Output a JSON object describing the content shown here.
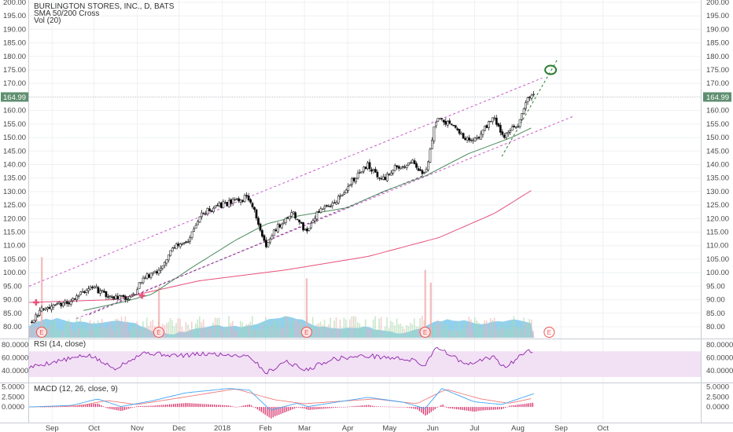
{
  "chart_data": {
    "type": "candlestick",
    "title": "BURLINGTON STORES, INC., D, BATS",
    "legend": [
      "SMA 50/200 Cross",
      "Vol (20)"
    ],
    "last_price_label": "164.99",
    "x_tick_labels": [
      "Sep",
      "Oct",
      "Nov",
      "Dec",
      "2018",
      "Feb",
      "Mar",
      "Apr",
      "May",
      "Jun",
      "Jul",
      "Aug",
      "Sep",
      "Oct"
    ],
    "earnings_marker_label": "E",
    "price_axis": {
      "ylim": [
        75,
        200
      ],
      "tick_labels": [
        "200.00",
        "195.00",
        "190.00",
        "185.00",
        "180.00",
        "175.00",
        "170.00",
        "165.00",
        "160.00",
        "155.00",
        "150.00",
        "145.00",
        "140.00",
        "135.00",
        "130.00",
        "125.00",
        "120.00",
        "115.00",
        "110.00",
        "105.00",
        "100.00",
        "95.00",
        "90.00",
        "85.00",
        "80.00"
      ]
    },
    "price_keypoints": [
      {
        "x": "2017-08-22",
        "y": 82
      },
      {
        "x": "2017-08-29",
        "y": 86
      },
      {
        "x": "2017-09-08",
        "y": 87.5
      },
      {
        "x": "2017-09-20",
        "y": 90
      },
      {
        "x": "2017-10-03",
        "y": 95
      },
      {
        "x": "2017-10-18",
        "y": 91
      },
      {
        "x": "2017-11-02",
        "y": 91
      },
      {
        "x": "2017-11-10",
        "y": 98
      },
      {
        "x": "2017-11-22",
        "y": 101
      },
      {
        "x": "2017-12-01",
        "y": 110
      },
      {
        "x": "2017-12-12",
        "y": 112
      },
      {
        "x": "2017-12-22",
        "y": 122
      },
      {
        "x": "2018-01-10",
        "y": 126
      },
      {
        "x": "2018-01-25",
        "y": 128
      },
      {
        "x": "2018-02-06",
        "y": 110
      },
      {
        "x": "2018-02-14",
        "y": 117
      },
      {
        "x": "2018-02-26",
        "y": 122
      },
      {
        "x": "2018-03-06",
        "y": 115
      },
      {
        "x": "2018-03-14",
        "y": 122
      },
      {
        "x": "2018-03-28",
        "y": 126
      },
      {
        "x": "2018-04-10",
        "y": 135
      },
      {
        "x": "2018-04-20",
        "y": 140
      },
      {
        "x": "2018-04-30",
        "y": 134
      },
      {
        "x": "2018-05-10",
        "y": 139
      },
      {
        "x": "2018-05-22",
        "y": 141
      },
      {
        "x": "2018-05-31",
        "y": 136
      },
      {
        "x": "2018-06-04",
        "y": 147
      },
      {
        "x": "2018-06-08",
        "y": 157
      },
      {
        "x": "2018-06-20",
        "y": 154
      },
      {
        "x": "2018-06-29",
        "y": 149
      },
      {
        "x": "2018-07-10",
        "y": 151
      },
      {
        "x": "2018-07-18",
        "y": 158
      },
      {
        "x": "2018-07-26",
        "y": 150
      },
      {
        "x": "2018-08-06",
        "y": 155
      },
      {
        "x": "2018-08-13",
        "y": 165
      },
      {
        "x": "2018-08-17",
        "y": 164.99
      }
    ],
    "sma50_keypoints": [
      {
        "x": "2017-09-28",
        "y": 86
      },
      {
        "x": "2017-10-25",
        "y": 89
      },
      {
        "x": "2017-11-16",
        "y": 92
      },
      {
        "x": "2017-12-15",
        "y": 102
      },
      {
        "x": "2018-01-15",
        "y": 112
      },
      {
        "x": "2018-02-06",
        "y": 118
      },
      {
        "x": "2018-03-01",
        "y": 121
      },
      {
        "x": "2018-04-05",
        "y": 124
      },
      {
        "x": "2018-05-01",
        "y": 130
      },
      {
        "x": "2018-06-01",
        "y": 136
      },
      {
        "x": "2018-07-01",
        "y": 144
      },
      {
        "x": "2018-08-01",
        "y": 150
      },
      {
        "x": "2018-08-17",
        "y": 154
      }
    ],
    "sma200_keypoints": [
      {
        "x": "2017-08-20",
        "y": 89
      },
      {
        "x": "2017-10-20",
        "y": 90
      },
      {
        "x": "2017-12-20",
        "y": 97
      },
      {
        "x": "2018-02-20",
        "y": 101
      },
      {
        "x": "2018-04-20",
        "y": 106
      },
      {
        "x": "2018-06-10",
        "y": 113
      },
      {
        "x": "2018-07-20",
        "y": 122
      },
      {
        "x": "2018-08-17",
        "y": 131
      }
    ],
    "sma_cross_markers": [
      {
        "x": "2017-08-25",
        "y": 89
      },
      {
        "x": "2017-11-09",
        "y": 91.5
      }
    ],
    "trend_channel": {
      "upper": [
        {
          "x": "2017-08-20",
          "y": 95
        },
        {
          "x": "2018-08-23",
          "y": 172
        }
      ],
      "lower": [
        {
          "x": "2017-09-23",
          "y": 83
        },
        {
          "x": "2018-09-15",
          "y": 158
        }
      ],
      "middle": [
        {
          "x": "2017-10-02",
          "y": 84.5
        },
        {
          "x": "2018-05-30",
          "y": 136
        }
      ]
    },
    "projection_line": [
      {
        "x": "2018-07-25",
        "y": 143
      },
      {
        "x": "2018-09-03",
        "y": 179
      }
    ],
    "target_circle": {
      "x": "2018-08-29",
      "y": 175
    },
    "earnings_markers": [
      {
        "x": "2017-08-29",
        "reported": true
      },
      {
        "x": "2017-11-21",
        "reported": true
      },
      {
        "x": "2018-03-07",
        "reported": true
      },
      {
        "x": "2018-05-31",
        "reported": true
      },
      {
        "x": "2018-08-28",
        "reported": false
      }
    ],
    "volume": {
      "title": "Vol (20)",
      "relative_spikes": [
        {
          "x": "2017-08-29",
          "v": 0.95
        },
        {
          "x": "2017-11-21",
          "v": 0.6
        },
        {
          "x": "2018-03-07",
          "v": 0.7
        },
        {
          "x": "2018-05-31",
          "v": 0.8
        },
        {
          "x": "2018-06-04",
          "v": 0.65
        }
      ]
    },
    "rsi": {
      "title": "RSI (14, close)",
      "tick_labels": [
        "80.0000",
        "60.0000",
        "40.0000"
      ],
      "ylim": [
        25,
        85
      ],
      "band": [
        30,
        70
      ],
      "keypoints": [
        {
          "x": "2017-08-20",
          "y": 45
        },
        {
          "x": "2017-09-10",
          "y": 55
        },
        {
          "x": "2017-10-02",
          "y": 64
        },
        {
          "x": "2017-10-20",
          "y": 43
        },
        {
          "x": "2017-11-10",
          "y": 68
        },
        {
          "x": "2017-12-05",
          "y": 63
        },
        {
          "x": "2017-12-25",
          "y": 66
        },
        {
          "x": "2018-01-25",
          "y": 63
        },
        {
          "x": "2018-02-06",
          "y": 36
        },
        {
          "x": "2018-02-20",
          "y": 55
        },
        {
          "x": "2018-03-06",
          "y": 40
        },
        {
          "x": "2018-03-25",
          "y": 58
        },
        {
          "x": "2018-04-20",
          "y": 63
        },
        {
          "x": "2018-05-20",
          "y": 57
        },
        {
          "x": "2018-05-31",
          "y": 48
        },
        {
          "x": "2018-06-08",
          "y": 78
        },
        {
          "x": "2018-06-30",
          "y": 48
        },
        {
          "x": "2018-07-18",
          "y": 62
        },
        {
          "x": "2018-07-28",
          "y": 44
        },
        {
          "x": "2018-08-13",
          "y": 75
        },
        {
          "x": "2018-08-17",
          "y": 66
        }
      ]
    },
    "macd": {
      "title": "MACD (12, 26, close, 9)",
      "tick_labels": [
        "5.0000",
        "2.5000",
        "0.0000"
      ],
      "ylim": [
        -3.5,
        5.5
      ],
      "macd_keypoints": [
        {
          "x": "2017-08-20",
          "y": 0
        },
        {
          "x": "2017-09-20",
          "y": 0.4
        },
        {
          "x": "2017-10-08",
          "y": 2.0
        },
        {
          "x": "2017-10-25",
          "y": 0.1
        },
        {
          "x": "2017-11-16",
          "y": 1.5
        },
        {
          "x": "2017-12-10",
          "y": 3.5
        },
        {
          "x": "2018-01-10",
          "y": 4.6
        },
        {
          "x": "2018-01-25",
          "y": 4.2
        },
        {
          "x": "2018-02-09",
          "y": -0.8
        },
        {
          "x": "2018-02-28",
          "y": 0.9
        },
        {
          "x": "2018-03-08",
          "y": 0.1
        },
        {
          "x": "2018-04-20",
          "y": 2.4
        },
        {
          "x": "2018-05-15",
          "y": 1.2
        },
        {
          "x": "2018-05-31",
          "y": -0.4
        },
        {
          "x": "2018-06-12",
          "y": 4.6
        },
        {
          "x": "2018-07-05",
          "y": 1.3
        },
        {
          "x": "2018-07-25",
          "y": 0.6
        },
        {
          "x": "2018-08-17",
          "y": 3.3
        }
      ],
      "signal_keypoints": [
        {
          "x": "2017-08-20",
          "y": 0
        },
        {
          "x": "2017-09-25",
          "y": 0.3
        },
        {
          "x": "2017-10-15",
          "y": 1.6
        },
        {
          "x": "2017-11-05",
          "y": 0.6
        },
        {
          "x": "2017-12-01",
          "y": 2.0
        },
        {
          "x": "2018-01-15",
          "y": 4.5
        },
        {
          "x": "2018-02-12",
          "y": 1.8
        },
        {
          "x": "2018-03-05",
          "y": 0.8
        },
        {
          "x": "2018-04-25",
          "y": 2.0
        },
        {
          "x": "2018-05-25",
          "y": 0.8
        },
        {
          "x": "2018-06-15",
          "y": 4.4
        },
        {
          "x": "2018-07-10",
          "y": 2.0
        },
        {
          "x": "2018-07-30",
          "y": 0.9
        },
        {
          "x": "2018-08-17",
          "y": 2.2
        }
      ]
    },
    "colors": {
      "up": "#26a69a",
      "down": "#ef5350",
      "candle_body_up": "#ffffff",
      "candle_body_down": "#000000",
      "sma50": "#4b8a5e",
      "sma200": "#e7507a",
      "channel": "#c957c9",
      "projection": "#2e7d32",
      "volume_area": "#6dc0ea",
      "volume_spike_up": "#a8d8a8",
      "volume_spike_down": "#f0b0b0",
      "rsi_line": "#8e24aa",
      "rsi_band": "#f2e0f5",
      "macd_line": "#42a5f5",
      "signal_line": "#ef7a7a",
      "histogram": "#d6336c",
      "price_label_bg": "#5f8f70"
    }
  }
}
